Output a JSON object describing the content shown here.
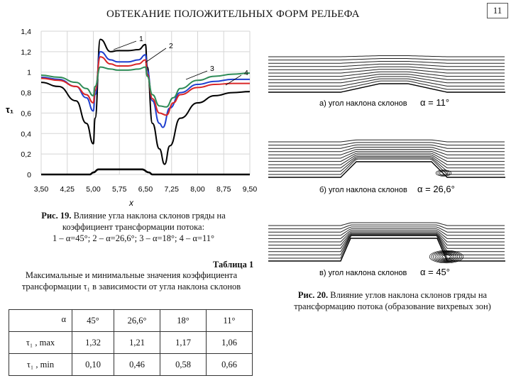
{
  "header": {
    "title": "ОБТЕКАНИЕ ПОЛОЖИТЕЛЬНЫХ ФОРМ РЕЛЬЕФА",
    "page_number": "11"
  },
  "chart_data": {
    "type": "line",
    "title": "",
    "xlabel": "x",
    "ylabel": "τ₁",
    "xlim": [
      3.5,
      9.5
    ],
    "ylim": [
      0,
      1.4
    ],
    "x_ticks": [
      "3,50",
      "4,25",
      "5,00",
      "5,75",
      "6,50",
      "7,25",
      "8,00",
      "8,75",
      "9,50"
    ],
    "y_ticks": [
      "0",
      "0,2",
      "0,4",
      "0,6",
      "0,8",
      "1",
      "1,2",
      "1,4"
    ],
    "grid": true,
    "curve_labels": [
      "1",
      "2",
      "3",
      "4"
    ],
    "series": [
      {
        "color": "#000000",
        "x": [
          3.5,
          4.0,
          4.5,
          4.8,
          5.0,
          5.05,
          5.2,
          5.5,
          5.7,
          6.0,
          6.3,
          6.5,
          6.55,
          6.7,
          6.9,
          7.05,
          7.2,
          7.5,
          8.0,
          8.5,
          9.0,
          9.5
        ],
        "y": [
          0.9,
          0.86,
          0.72,
          0.5,
          0.3,
          0.55,
          1.32,
          1.2,
          1.21,
          1.21,
          1.22,
          1.27,
          1.05,
          0.5,
          0.25,
          0.1,
          0.28,
          0.55,
          0.7,
          0.77,
          0.8,
          0.81
        ]
      },
      {
        "color": "#1f3fcf",
        "x": [
          3.5,
          4.0,
          4.5,
          4.8,
          5.0,
          5.05,
          5.2,
          5.5,
          5.7,
          6.0,
          6.3,
          6.5,
          6.55,
          6.7,
          6.9,
          7.0,
          7.2,
          7.5,
          8.0,
          8.5,
          9.0,
          9.5
        ],
        "y": [
          0.95,
          0.93,
          0.86,
          0.75,
          0.62,
          0.78,
          1.2,
          1.12,
          1.1,
          1.1,
          1.12,
          1.17,
          1.02,
          0.72,
          0.5,
          0.46,
          0.65,
          0.8,
          0.88,
          0.91,
          0.93,
          0.93
        ]
      },
      {
        "color": "#d92626",
        "x": [
          3.5,
          4.0,
          4.5,
          4.8,
          5.0,
          5.05,
          5.2,
          5.5,
          5.7,
          6.0,
          6.3,
          6.5,
          6.55,
          6.7,
          6.9,
          7.1,
          7.3,
          7.5,
          8.0,
          8.5,
          9.0,
          9.5
        ],
        "y": [
          0.94,
          0.92,
          0.86,
          0.78,
          0.7,
          0.82,
          1.15,
          1.08,
          1.06,
          1.06,
          1.08,
          1.12,
          0.98,
          0.74,
          0.6,
          0.58,
          0.7,
          0.78,
          0.85,
          0.88,
          0.89,
          0.89
        ]
      },
      {
        "color": "#2e8b57",
        "x": [
          3.5,
          4.0,
          4.5,
          4.8,
          5.0,
          5.05,
          5.2,
          5.5,
          5.7,
          6.0,
          6.3,
          6.5,
          6.55,
          6.7,
          6.9,
          7.1,
          7.3,
          7.5,
          8.0,
          8.5,
          9.0,
          9.5
        ],
        "y": [
          0.97,
          0.95,
          0.9,
          0.84,
          0.77,
          0.86,
          1.05,
          1.03,
          1.02,
          1.02,
          1.03,
          1.05,
          0.96,
          0.78,
          0.67,
          0.66,
          0.75,
          0.84,
          0.92,
          0.96,
          0.98,
          0.99
        ]
      },
      {
        "color": "#000000",
        "x": [
          3.5,
          4.9,
          5.0,
          5.15,
          6.4,
          6.6,
          6.7,
          9.5
        ],
        "y": [
          0,
          0,
          0.02,
          0.05,
          0.05,
          0.02,
          0,
          0
        ]
      }
    ]
  },
  "fig19": {
    "caption_bold": "Рис. 19.",
    "caption_lines": [
      "Влияние угла наклона склонов гряды на",
      "коэффициент трансформации потока:",
      "1 – α=45°; 2 – α=26,6°; 3 – α=18°; 4 – α=11°"
    ]
  },
  "flows": [
    {
      "label": "а) угол наклона склонов",
      "alpha": "α = 11°"
    },
    {
      "label": "б) угол наклона склонов",
      "alpha": "α = 26,6°"
    },
    {
      "label": "в) угол наклона склонов",
      "alpha": "α = 45°"
    }
  ],
  "fig20": {
    "caption_bold": "Рис. 20.",
    "caption_text": "Влияние углов наклона склонов гряды на трансформацию потока (образование вихревых зон)"
  },
  "table": {
    "title": "Таблица 1",
    "description": "Максимальные и минимальные значения коэффициента трансформации τ₁ в зависимости от угла наклона склонов",
    "corner_label": "α",
    "columns": [
      "45°",
      "26,6°",
      "18°",
      "11°"
    ],
    "rows": [
      {
        "label": "τ₁ , max",
        "values": [
          "1,32",
          "1,21",
          "1,17",
          "1,06"
        ]
      },
      {
        "label": "τ₁ , min",
        "values": [
          "0,10",
          "0,46",
          "0,58",
          "0,66"
        ]
      }
    ]
  }
}
